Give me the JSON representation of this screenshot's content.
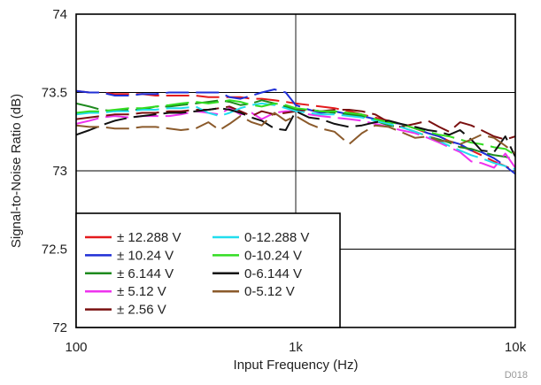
{
  "chart_data": {
    "type": "line",
    "title": "",
    "xlabel": "Input Frequency (Hz)",
    "ylabel": "Signal-to-Noise Ratio (dB)",
    "xscale": "log",
    "xlim": [
      100,
      10000
    ],
    "ylim": [
      72,
      74
    ],
    "x_ticks": [
      {
        "value": 100,
        "label": "100"
      },
      {
        "value": 1000,
        "label": "1k"
      },
      {
        "value": 10000,
        "label": "10k"
      }
    ],
    "y_ticks": [
      {
        "value": 72,
        "label": "72"
      },
      {
        "value": 72.5,
        "label": "72.5"
      },
      {
        "value": 73,
        "label": "73"
      },
      {
        "value": 73.5,
        "label": "73.5"
      },
      {
        "value": 74,
        "label": "74"
      }
    ],
    "grid": "major",
    "legend_position": "bottom-left",
    "figure_id": "D018",
    "series": [
      {
        "name": "± 12.288 V",
        "color": "#e41a1c",
        "x": [
          100,
          115,
          130,
          150,
          175,
          200,
          230,
          265,
          300,
          350,
          400,
          450,
          500,
          560,
          630,
          700,
          800,
          900,
          1000,
          1150,
          1300,
          1500,
          1750,
          2000,
          2300,
          2650,
          3000,
          3500,
          4000,
          4500,
          5000,
          5600,
          6300,
          7000,
          8000,
          9000,
          10000
        ],
        "y": [
          73.51,
          73.5,
          73.5,
          73.49,
          73.49,
          73.49,
          73.48,
          73.48,
          73.48,
          73.48,
          73.47,
          73.47,
          73.47,
          73.47,
          73.46,
          73.46,
          73.45,
          73.44,
          73.43,
          73.42,
          73.41,
          73.4,
          73.38,
          73.36,
          73.34,
          73.32,
          73.3,
          73.27,
          73.24,
          73.22,
          73.19,
          73.16,
          73.13,
          73.1,
          73.06,
          73.03,
          73.0
        ]
      },
      {
        "name": "± 10.24 V",
        "color": "#1f2fd6",
        "x": [
          100,
          115,
          130,
          150,
          175,
          200,
          230,
          265,
          300,
          350,
          400,
          450,
          500,
          560,
          630,
          700,
          800,
          900,
          1000,
          1150,
          1300,
          1500,
          1750,
          2000,
          2300,
          2650,
          3000,
          3500,
          4000,
          4500,
          5000,
          5600,
          6300,
          7000,
          8000,
          9000,
          10000
        ],
        "y": [
          73.51,
          73.5,
          73.5,
          73.48,
          73.48,
          73.49,
          73.49,
          73.5,
          73.5,
          73.5,
          73.5,
          73.5,
          73.47,
          73.46,
          73.48,
          73.5,
          73.52,
          73.5,
          73.42,
          73.39,
          73.37,
          73.38,
          73.36,
          73.35,
          73.33,
          73.31,
          73.3,
          73.27,
          73.24,
          73.22,
          73.19,
          73.17,
          73.13,
          73.12,
          73.08,
          73.03,
          72.98
        ]
      },
      {
        "name": "± 6.144 V",
        "color": "#1e8a1e",
        "x": [
          100,
          115,
          130,
          150,
          175,
          200,
          230,
          265,
          300,
          350,
          400,
          450,
          500,
          560,
          630,
          700,
          800,
          900,
          1000,
          1150,
          1300,
          1500,
          1750,
          2000,
          2300,
          2650,
          3000,
          3500,
          4000,
          4500,
          5000,
          5600,
          6300,
          7000,
          8000,
          9000,
          10000
        ],
        "y": [
          73.43,
          73.41,
          73.39,
          73.38,
          73.39,
          73.39,
          73.41,
          73.41,
          73.42,
          73.43,
          73.44,
          73.45,
          73.44,
          73.42,
          73.43,
          73.45,
          73.43,
          73.41,
          73.39,
          73.39,
          73.38,
          73.37,
          73.36,
          73.35,
          73.32,
          73.29,
          73.28,
          73.25,
          73.22,
          73.2,
          73.18,
          73.15,
          73.14,
          73.12,
          73.1,
          73.09,
          73.07
        ]
      },
      {
        "name": "± 5.12 V",
        "color": "#ee33ee",
        "x": [
          100,
          115,
          130,
          150,
          175,
          200,
          230,
          265,
          300,
          350,
          400,
          450,
          500,
          560,
          630,
          700,
          800,
          900,
          1000,
          1150,
          1300,
          1500,
          1750,
          2000,
          2300,
          2650,
          3000,
          3500,
          4000,
          4500,
          5000,
          5600,
          6300,
          7000,
          8000,
          9000,
          10000
        ],
        "y": [
          73.3,
          73.32,
          73.34,
          73.35,
          73.34,
          73.35,
          73.35,
          73.35,
          73.36,
          73.38,
          73.37,
          73.36,
          73.4,
          73.36,
          73.37,
          73.33,
          73.37,
          73.38,
          73.38,
          73.36,
          73.35,
          73.34,
          73.33,
          73.32,
          73.3,
          73.28,
          73.26,
          73.24,
          73.21,
          73.18,
          73.15,
          73.12,
          73.06,
          73.05,
          73.02,
          73.11,
          73.02
        ]
      },
      {
        "name": "± 2.56 V",
        "color": "#7a1010",
        "x": [
          100,
          115,
          130,
          150,
          175,
          200,
          230,
          265,
          300,
          350,
          400,
          450,
          500,
          560,
          630,
          700,
          800,
          900,
          1000,
          1150,
          1300,
          1500,
          1750,
          2000,
          2300,
          2650,
          3000,
          3500,
          4000,
          4500,
          5000,
          5600,
          6300,
          7000,
          8000,
          9000,
          10000
        ],
        "y": [
          73.33,
          73.34,
          73.35,
          73.36,
          73.36,
          73.37,
          73.37,
          73.38,
          73.38,
          73.39,
          73.39,
          73.4,
          73.41,
          73.38,
          73.35,
          73.38,
          73.36,
          73.37,
          73.38,
          73.39,
          73.38,
          73.39,
          73.39,
          73.38,
          73.36,
          73.31,
          73.28,
          73.3,
          73.32,
          73.28,
          73.25,
          73.31,
          73.29,
          73.26,
          73.22,
          73.2,
          73.22
        ]
      },
      {
        "name": "0-12.288 V",
        "color": "#22ddee",
        "x": [
          100,
          115,
          130,
          150,
          175,
          200,
          230,
          265,
          300,
          350,
          400,
          450,
          500,
          560,
          630,
          700,
          800,
          900,
          1000,
          1150,
          1300,
          1500,
          1750,
          2000,
          2300,
          2650,
          3000,
          3500,
          4000,
          4500,
          5000,
          5600,
          6300,
          7000,
          8000,
          9000,
          10000
        ],
        "y": [
          73.36,
          73.37,
          73.37,
          73.38,
          73.38,
          73.39,
          73.39,
          73.4,
          73.4,
          73.41,
          73.37,
          73.35,
          73.37,
          73.4,
          73.42,
          73.43,
          73.42,
          73.4,
          73.38,
          73.37,
          73.36,
          73.36,
          73.35,
          73.34,
          73.32,
          73.3,
          73.28,
          73.25,
          73.22,
          73.19,
          73.16,
          73.13,
          73.1,
          73.08,
          73.05,
          73.03,
          73.01
        ]
      },
      {
        "name": "0-10.24 V",
        "color": "#33dd22",
        "x": [
          100,
          115,
          130,
          150,
          175,
          200,
          230,
          265,
          300,
          350,
          400,
          450,
          500,
          560,
          630,
          700,
          800,
          900,
          1000,
          1150,
          1300,
          1500,
          1750,
          2000,
          2300,
          2650,
          3000,
          3500,
          4000,
          4500,
          5000,
          5600,
          6300,
          7000,
          8000,
          9000,
          10000
        ],
        "y": [
          73.37,
          73.38,
          73.38,
          73.39,
          73.4,
          73.4,
          73.41,
          73.42,
          73.43,
          73.44,
          73.43,
          73.44,
          73.45,
          73.44,
          73.42,
          73.41,
          73.43,
          73.42,
          73.4,
          73.39,
          73.38,
          73.38,
          73.37,
          73.36,
          73.33,
          73.31,
          73.3,
          73.27,
          73.25,
          73.23,
          73.22,
          73.2,
          73.18,
          73.17,
          73.15,
          73.14,
          73.1
        ]
      },
      {
        "name": "0-6.144 V",
        "color": "#111111",
        "x": [
          100,
          115,
          130,
          150,
          175,
          200,
          230,
          265,
          300,
          350,
          400,
          450,
          500,
          560,
          630,
          700,
          800,
          900,
          1000,
          1150,
          1300,
          1500,
          1750,
          2000,
          2300,
          2650,
          3000,
          3500,
          4000,
          4500,
          5000,
          5600,
          6300,
          7000,
          8000,
          9000,
          10000
        ],
        "y": [
          73.23,
          73.26,
          73.29,
          73.32,
          73.34,
          73.35,
          73.36,
          73.37,
          73.37,
          73.38,
          73.39,
          73.4,
          73.39,
          73.37,
          73.34,
          73.32,
          73.27,
          73.26,
          73.38,
          73.34,
          73.33,
          73.3,
          73.28,
          73.29,
          73.31,
          73.32,
          73.3,
          73.28,
          73.26,
          73.25,
          73.23,
          73.26,
          73.2,
          73.13,
          73.12,
          73.22,
          73.09
        ]
      },
      {
        "name": "0-5.12 V",
        "color": "#8b5a2b",
        "x": [
          100,
          115,
          130,
          150,
          175,
          200,
          230,
          265,
          300,
          350,
          400,
          450,
          500,
          560,
          630,
          700,
          800,
          900,
          1000,
          1150,
          1300,
          1500,
          1750,
          2000,
          2300,
          2650,
          3000,
          3500,
          4000,
          4500,
          5000,
          5600,
          6300,
          7000,
          8000,
          9000,
          10000
        ],
        "y": [
          73.29,
          73.28,
          73.28,
          73.27,
          73.27,
          73.28,
          73.28,
          73.27,
          73.26,
          73.27,
          73.31,
          73.26,
          73.3,
          73.35,
          73.31,
          73.29,
          73.37,
          73.32,
          73.35,
          73.3,
          73.27,
          73.25,
          73.17,
          73.24,
          73.29,
          73.28,
          73.25,
          73.21,
          73.22,
          73.19,
          73.19,
          73.17,
          73.2,
          73.23,
          73.21,
          73.16,
          73.11
        ]
      }
    ]
  }
}
